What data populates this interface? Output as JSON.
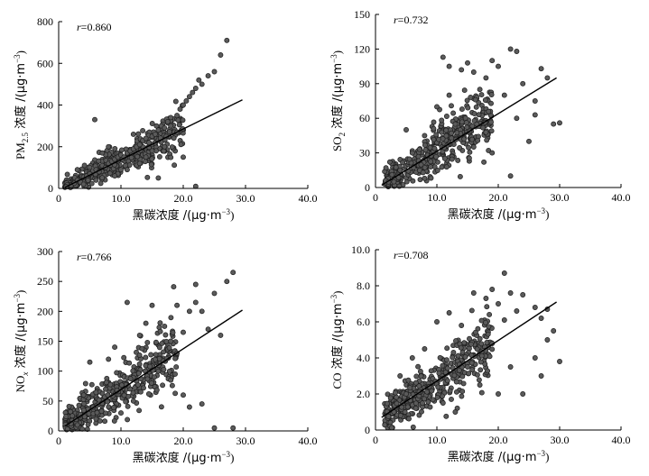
{
  "chart_data": [
    {
      "type": "scatter",
      "id": "pm25",
      "r_prefix": "r",
      "r_value": "=0.860",
      "ylabel_prefix": "PM",
      "ylabel_sub": "2.5",
      "ylabel_rest": " 浓度 /(μg·m",
      "ylabel_sup": "−3",
      "ylabel_close": ")",
      "xlabel": "黑碳浓度 /(μg·m",
      "xlabel_sup": "−3",
      "xlabel_close": ")",
      "xlim": [
        0,
        40
      ],
      "ylim": [
        0,
        800
      ],
      "xticks": [
        "0",
        "10.0",
        "20.0",
        "30.0",
        "40.0"
      ],
      "yticks": [
        "0",
        "200",
        "400",
        "600",
        "800"
      ],
      "fit_line": {
        "x": [
          1,
          29.5
        ],
        "y": [
          5,
          425
        ]
      },
      "points": [
        [
          1.2,
          8
        ],
        [
          2,
          15
        ],
        [
          2.5,
          25
        ],
        [
          3,
          40
        ],
        [
          3.5,
          30
        ],
        [
          4,
          55
        ],
        [
          4.5,
          60
        ],
        [
          5,
          70
        ],
        [
          5.5,
          85
        ],
        [
          6,
          90
        ],
        [
          6.5,
          80
        ],
        [
          7,
          110
        ],
        [
          7.5,
          100
        ],
        [
          8,
          120
        ],
        [
          8.5,
          130
        ],
        [
          9,
          140
        ],
        [
          9.5,
          150
        ],
        [
          10,
          160
        ],
        [
          10.5,
          150
        ],
        [
          11,
          170
        ],
        [
          11.5,
          180
        ],
        [
          12,
          190
        ],
        [
          12.5,
          200
        ],
        [
          13,
          210
        ],
        [
          13.5,
          230
        ],
        [
          14,
          240
        ],
        [
          14.5,
          220
        ],
        [
          15,
          250
        ],
        [
          15.5,
          260
        ],
        [
          16,
          280
        ],
        [
          16.5,
          300
        ],
        [
          17,
          290
        ],
        [
          17.5,
          320
        ],
        [
          18,
          340
        ],
        [
          19,
          350
        ],
        [
          19.5,
          380
        ],
        [
          20,
          400
        ],
        [
          20.5,
          420
        ],
        [
          21,
          440
        ],
        [
          21.5,
          460
        ],
        [
          22,
          480
        ],
        [
          22.5,
          520
        ],
        [
          23,
          500
        ],
        [
          24,
          540
        ],
        [
          25,
          560
        ],
        [
          26,
          640
        ],
        [
          27,
          710
        ],
        [
          5.8,
          330
        ],
        [
          22,
          10
        ],
        [
          20,
          150
        ],
        [
          16,
          50
        ],
        [
          18,
          300
        ],
        [
          9,
          60
        ],
        [
          11,
          90
        ],
        [
          13,
          120
        ],
        [
          7,
          170
        ],
        [
          8,
          200
        ],
        [
          12,
          260
        ],
        [
          15,
          180
        ],
        [
          3,
          90
        ],
        [
          4,
          20
        ],
        [
          6,
          40
        ],
        [
          10,
          90
        ],
        [
          14,
          150
        ],
        [
          17,
          200
        ],
        [
          19,
          270
        ]
      ],
      "scatter_gen": {
        "n": 420,
        "slope": 14.6,
        "intercept": -10,
        "noise": 55,
        "xmin": 1,
        "xmax": 20
      }
    },
    {
      "type": "scatter",
      "id": "so2",
      "r_prefix": "r",
      "r_value": "=0.732",
      "ylabel_prefix": "SO",
      "ylabel_sub": "2",
      "ylabel_rest": " 浓度 /(μg·m",
      "ylabel_sup": "−3",
      "ylabel_close": ")",
      "xlabel": "黑碳浓度 /(μg·m",
      "xlabel_sup": "−3",
      "xlabel_close": ")",
      "xlim": [
        0,
        40
      ],
      "ylim": [
        0,
        150
      ],
      "xticks": [
        "0",
        "10.0",
        "20.0",
        "30.0",
        "40.0"
      ],
      "yticks": [
        "0",
        "30",
        "60",
        "90",
        "120",
        "150"
      ],
      "fit_line": {
        "x": [
          1,
          29.5
        ],
        "y": [
          2,
          95
        ]
      },
      "points": [
        [
          11,
          113
        ],
        [
          12,
          105
        ],
        [
          14,
          102
        ],
        [
          15,
          108
        ],
        [
          16,
          100
        ],
        [
          18,
          95
        ],
        [
          19,
          110
        ],
        [
          20,
          105
        ],
        [
          22,
          120
        ],
        [
          23,
          118
        ],
        [
          24,
          90
        ],
        [
          26,
          75
        ],
        [
          27,
          103
        ],
        [
          28,
          95
        ],
        [
          29,
          55
        ],
        [
          30,
          56
        ],
        [
          26,
          63
        ],
        [
          8,
          45
        ],
        [
          10,
          70
        ],
        [
          12,
          80
        ],
        [
          17,
          85
        ],
        [
          21,
          80
        ],
        [
          23,
          60
        ],
        [
          25,
          40
        ],
        [
          22,
          10
        ],
        [
          19,
          30
        ],
        [
          6,
          30
        ],
        [
          4,
          15
        ],
        [
          3,
          5
        ],
        [
          5,
          50
        ],
        [
          13,
          55
        ]
      ],
      "scatter_gen": {
        "n": 420,
        "slope": 3.3,
        "intercept": 0,
        "noise": 16,
        "xmin": 1.5,
        "xmax": 19
      }
    },
    {
      "type": "scatter",
      "id": "nox",
      "r_prefix": "r",
      "r_value": "=0.766",
      "ylabel_prefix": "NO",
      "ylabel_sub": "x",
      "ylabel_rest": " 浓度 /(μg·m",
      "ylabel_sup": "−3",
      "ylabel_close": ")",
      "xlabel": "黑碳浓度 /(μg·m",
      "xlabel_sup": "−3",
      "xlabel_close": ")",
      "xlim": [
        0,
        40
      ],
      "ylim": [
        0,
        300
      ],
      "xticks": [
        "0",
        "10.0",
        "20.0",
        "30.0",
        "40.0"
      ],
      "yticks": [
        "0",
        "50",
        "100",
        "150",
        "200",
        "250",
        "300"
      ],
      "fit_line": {
        "x": [
          1,
          29.5
        ],
        "y": [
          8,
          202
        ]
      },
      "points": [
        [
          28,
          265
        ],
        [
          27,
          250
        ],
        [
          22,
          245
        ],
        [
          25,
          230
        ],
        [
          22,
          215
        ],
        [
          11,
          215
        ],
        [
          15,
          210
        ],
        [
          19,
          210
        ],
        [
          21,
          200
        ],
        [
          23,
          200
        ],
        [
          26,
          160
        ],
        [
          24,
          170
        ],
        [
          20,
          165
        ],
        [
          28,
          5
        ],
        [
          25,
          5
        ],
        [
          18,
          85
        ],
        [
          20,
          60
        ],
        [
          21,
          40
        ],
        [
          23,
          45
        ],
        [
          5,
          115
        ],
        [
          8,
          120
        ],
        [
          16,
          100
        ],
        [
          14,
          180
        ],
        [
          17,
          175
        ],
        [
          13,
          160
        ],
        [
          9,
          140
        ],
        [
          6,
          20
        ],
        [
          3,
          10
        ],
        [
          4,
          60
        ],
        [
          12,
          50
        ],
        [
          10,
          30
        ],
        [
          19,
          130
        ],
        [
          18,
          150
        ]
      ],
      "scatter_gen": {
        "n": 430,
        "slope": 6.8,
        "intercept": 5,
        "noise": 32,
        "xmin": 1,
        "xmax": 19
      }
    },
    {
      "type": "scatter",
      "id": "co",
      "r_prefix": "r",
      "r_value": "=0.708",
      "ylabel_prefix": "CO",
      "ylabel_sub": "",
      "ylabel_rest": " 浓度 /(μg·m",
      "ylabel_sup": "−3",
      "ylabel_close": ")",
      "xlabel": "黑碳浓度 /(μg·m",
      "xlabel_sup": "−3",
      "xlabel_close": ")",
      "xlim": [
        0,
        40
      ],
      "ylim": [
        0,
        10
      ],
      "xticks": [
        "0",
        "10.0",
        "20.0",
        "30.0",
        "40.0"
      ],
      "yticks": [
        "0",
        "2.0",
        "4.0",
        "6.0",
        "8.0",
        "10.0"
      ],
      "fit_line": {
        "x": [
          1,
          29.5
        ],
        "y": [
          0.7,
          7.1
        ]
      },
      "points": [
        [
          21,
          8.7
        ],
        [
          19,
          7.8
        ],
        [
          22,
          7.6
        ],
        [
          24,
          7.5
        ],
        [
          16,
          7.6
        ],
        [
          18,
          7.3
        ],
        [
          20,
          7.0
        ],
        [
          23,
          6.6
        ],
        [
          26,
          6.8
        ],
        [
          27,
          6.2
        ],
        [
          28,
          6.7
        ],
        [
          29,
          5.5
        ],
        [
          30,
          3.8
        ],
        [
          26,
          4.0
        ],
        [
          28,
          5.0
        ],
        [
          27,
          3.0
        ],
        [
          24,
          2.0
        ],
        [
          22,
          3.5
        ],
        [
          20,
          2.0
        ],
        [
          12,
          6.5
        ],
        [
          10,
          6.0
        ],
        [
          14,
          5.8
        ],
        [
          8,
          4.5
        ],
        [
          6,
          4.0
        ],
        [
          4,
          3.0
        ],
        [
          3,
          1.0
        ],
        [
          5,
          2.0
        ],
        [
          11,
          1.5
        ],
        [
          13,
          1.0
        ],
        [
          17,
          2.5
        ],
        [
          15,
          3.5
        ],
        [
          19,
          4.8
        ],
        [
          21,
          6.1
        ]
      ],
      "scatter_gen": {
        "n": 430,
        "slope": 0.22,
        "intercept": 0.5,
        "noise": 1.1,
        "xmin": 1.5,
        "xmax": 19
      }
    }
  ]
}
